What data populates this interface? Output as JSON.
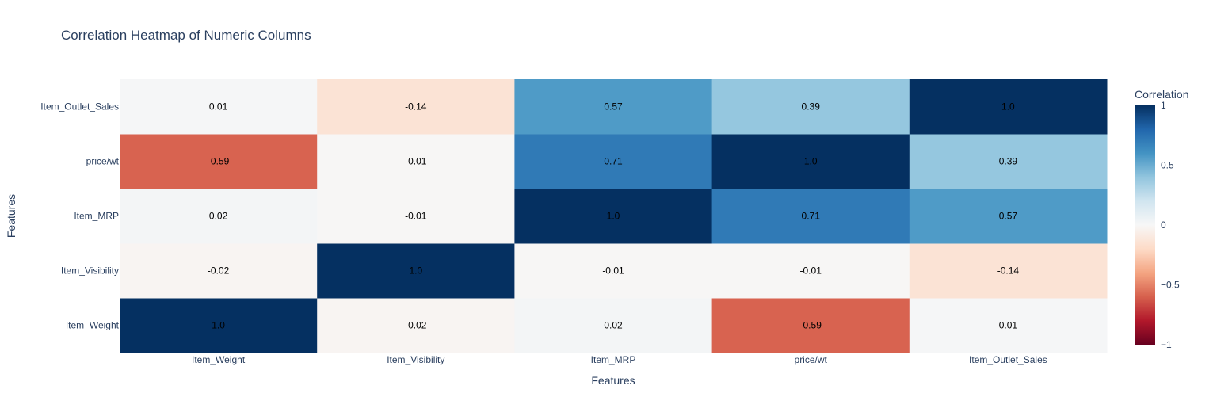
{
  "chart_data": {
    "type": "heatmap",
    "title": "Correlation Heatmap of Numeric Columns",
    "xlabel": "Features",
    "ylabel": "Features",
    "x": [
      "Item_Weight",
      "Item_Visibility",
      "Item_MRP",
      "price/wt",
      "Item_Outlet_Sales"
    ],
    "y": [
      "Item_Weight",
      "Item_Visibility",
      "Item_MRP",
      "price/wt",
      "Item_Outlet_Sales"
    ],
    "z": [
      [
        1.0,
        -0.02,
        0.02,
        -0.59,
        0.01
      ],
      [
        -0.02,
        1.0,
        -0.01,
        -0.01,
        -0.14
      ],
      [
        0.02,
        -0.01,
        1.0,
        0.71,
        0.57
      ],
      [
        -0.59,
        -0.01,
        0.71,
        1.0,
        0.39
      ],
      [
        0.01,
        -0.14,
        0.57,
        0.39,
        1.0
      ]
    ],
    "text": [
      [
        "1.0",
        "-0.02",
        "0.02",
        "-0.59",
        "0.01"
      ],
      [
        "-0.02",
        "1.0",
        "-0.01",
        "-0.01",
        "-0.14"
      ],
      [
        "0.02",
        "-0.01",
        "1.0",
        "0.71",
        "0.57"
      ],
      [
        "-0.59",
        "-0.01",
        "0.71",
        "1.0",
        "0.39"
      ],
      [
        "0.01",
        "-0.14",
        "0.57",
        "0.39",
        "1.0"
      ]
    ],
    "zrange": [
      -1,
      1
    ],
    "colorscale": "RdBu",
    "colorbar": {
      "title": "Correlation",
      "ticks": [
        1,
        0.5,
        0,
        -0.5,
        -1
      ],
      "tick_labels": [
        "1",
        "0.5",
        "0",
        "−0.5",
        "−1"
      ]
    },
    "colors": {
      "scale": [
        "#67001f",
        "#b2182b",
        "#d6604d",
        "#f4a582",
        "#fddbc7",
        "#f7f7f7",
        "#d1e5f0",
        "#92c5de",
        "#4393c3",
        "#2166ac",
        "#053061"
      ],
      "text": "#000000",
      "axis_text": "#2a3f5f"
    }
  }
}
